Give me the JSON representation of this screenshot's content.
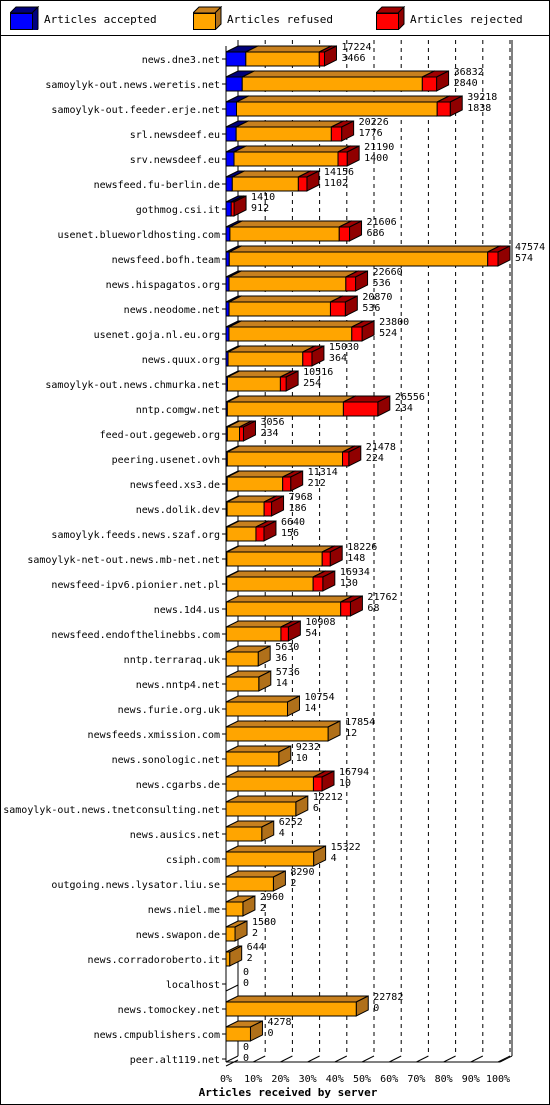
{
  "legend": {
    "accepted": "Articles accepted",
    "refused": "Articles refused",
    "rejected": "Articles rejected"
  },
  "colors": {
    "accepted": "#0000ff",
    "refused": "#ffa500",
    "rejected": "#ff0000",
    "mixed_orange_dark": "#c8801e"
  },
  "chart_data": {
    "type": "bar",
    "orientation": "horizontal",
    "stacked": true,
    "xlabel": "Articles received by server",
    "xticks": [
      "0%",
      "10%",
      "20%",
      "30%",
      "40%",
      "50%",
      "60%",
      "70%",
      "80%",
      "90%",
      "100%"
    ],
    "xlim": [
      0,
      47574
    ],
    "grid": true,
    "legend_position": "top",
    "categories": [
      "news.dne3.net",
      "samoylyk-out.news.weretis.net",
      "samoylyk-out.feeder.erje.net",
      "srl.newsdeef.eu",
      "srv.newsdeef.eu",
      "newsfeed.fu-berlin.de",
      "gothmog.csi.it",
      "usenet.blueworldhosting.com",
      "newsfeed.bofh.team",
      "news.hispagatos.org",
      "news.neodome.net",
      "usenet.goja.nl.eu.org",
      "news.quux.org",
      "samoylyk-out.news.chmurka.net",
      "nntp.comgw.net",
      "feed-out.gegeweb.org",
      "peering.usenet.ovh",
      "newsfeed.xs3.de",
      "news.dolik.dev",
      "samoylyk.feeds.news.szaf.org",
      "samoylyk-net-out.news.mb-net.net",
      "newsfeed-ipv6.pionier.net.pl",
      "news.1d4.us",
      "newsfeed.endofthelinebbs.com",
      "nntp.terraraq.uk",
      "news.nntp4.net",
      "news.furie.org.uk",
      "newsfeeds.xmission.com",
      "news.sonologic.net",
      "news.cgarbs.de",
      "samoylyk-out.news.tnetconsulting.net",
      "news.ausics.net",
      "csiph.com",
      "outgoing.news.lysator.liu.se",
      "news.niel.me",
      "news.swapon.de",
      "news.corradoroberto.it",
      "localhost",
      "news.tomockey.net",
      "news.cmpublishers.com",
      "peer.alt119.net"
    ],
    "totals": [
      17224,
      36832,
      39218,
      20226,
      21190,
      14156,
      1410,
      21606,
      47574,
      22660,
      20870,
      23800,
      15030,
      10516,
      26556,
      3056,
      21478,
      11314,
      7968,
      6640,
      18226,
      16934,
      21762,
      10908,
      5630,
      5736,
      10754,
      17854,
      9232,
      16794,
      12212,
      6252,
      15322,
      8290,
      2960,
      1580,
      644,
      0,
      22782,
      4278,
      0
    ],
    "rejected_labels": [
      3466,
      2840,
      1838,
      1776,
      1400,
      1102,
      912,
      686,
      574,
      536,
      536,
      524,
      364,
      254,
      234,
      234,
      224,
      212,
      186,
      156,
      148,
      130,
      68,
      54,
      36,
      14,
      14,
      12,
      10,
      10,
      6,
      4,
      4,
      2,
      2,
      2,
      2,
      0,
      0,
      0,
      0
    ],
    "series": [
      {
        "name": "Articles accepted",
        "values": [
          3466,
          2840,
          1838,
          1776,
          1400,
          1102,
          912,
          686,
          574,
          536,
          536,
          524,
          364,
          254,
          234,
          234,
          224,
          212,
          186,
          156,
          148,
          130,
          68,
          54,
          36,
          14,
          14,
          12,
          10,
          10,
          6,
          4,
          4,
          2,
          2,
          2,
          2,
          0,
          0,
          0,
          0
        ]
      },
      {
        "name": "Articles refused",
        "values": [
          12850,
          31500,
          35100,
          16650,
          18190,
          11554,
          0,
          19120,
          45200,
          20424,
          17734,
          21476,
          13066,
          9262,
          20300,
          2134,
          20154,
          9702,
          6482,
          5084,
          16678,
          15104,
          19994,
          9554,
          5594,
          5722,
          10740,
          17842,
          9222,
          15284,
          12206,
          6248,
          15318,
          8288,
          2958,
          1578,
          642,
          0,
          22782,
          4278,
          0
        ]
      },
      {
        "name": "Articles rejected",
        "values": [
          908,
          2492,
          2280,
          1800,
          1600,
          1500,
          498,
          1800,
          1800,
          1700,
          2600,
          1800,
          1600,
          1000,
          6022,
          688,
          1100,
          1400,
          1300,
          1400,
          1400,
          1700,
          1700,
          1300,
          0,
          0,
          0,
          0,
          0,
          1500,
          0,
          0,
          0,
          0,
          0,
          0,
          0,
          0,
          0,
          0,
          0
        ]
      }
    ]
  }
}
